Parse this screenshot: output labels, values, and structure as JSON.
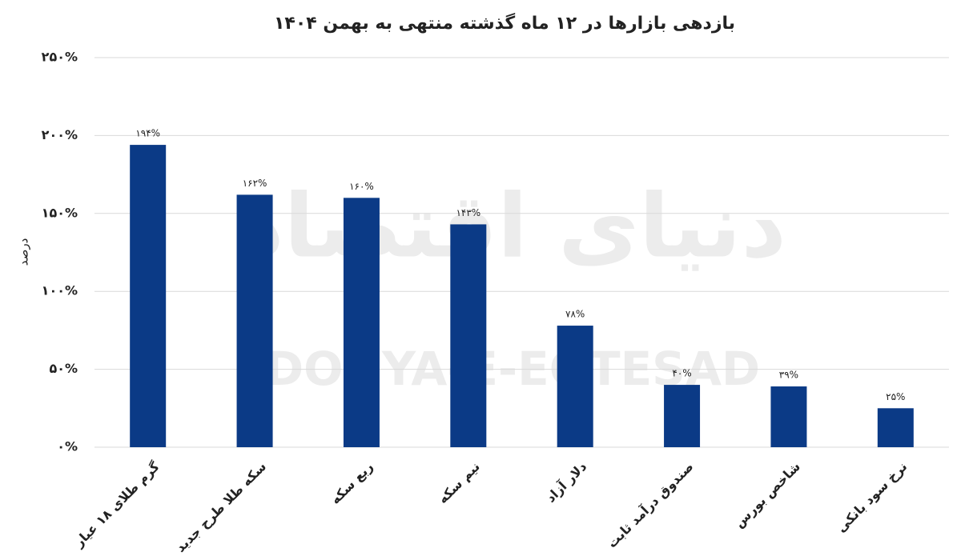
{
  "chart_data": {
    "type": "bar",
    "title": "بازدهی بازارها در ۱۲ ماه گذشته منتهی به بهمن ۱۴۰۴",
    "y_label": "درصد",
    "watermark": [
      "دنیای اقتصاد",
      "DONYA-E-EQTESAD"
    ],
    "categories": [
      "گرم طلای ۱۸ عیار",
      "سکه طلا طرح جدید",
      "ربع سکه",
      "نیم سکه",
      "دلار آزاد",
      "صندوق درآمد ثابت",
      "شاخص بورس",
      "نرخ سود بانکی"
    ],
    "values": [
      194,
      162,
      160,
      143,
      78,
      40,
      39,
      25
    ],
    "value_labels": [
      "۱۹۴%",
      "۱۶۲%",
      "۱۶۰%",
      "۱۴۳%",
      "۷۸%",
      "۴۰%",
      "۳۹%",
      "۲۵%"
    ],
    "color": "#0b3a86",
    "ylim": [
      0,
      250
    ],
    "yticks": [
      {
        "value": 0,
        "label": "۰%"
      },
      {
        "value": 50,
        "label": "۵۰%"
      },
      {
        "value": 100,
        "label": "۱۰۰%"
      },
      {
        "value": 150,
        "label": "۱۵۰%"
      },
      {
        "value": 200,
        "label": "۲۰۰%"
      },
      {
        "value": 250,
        "label": "۲۵۰%"
      }
    ],
    "grid": true
  }
}
